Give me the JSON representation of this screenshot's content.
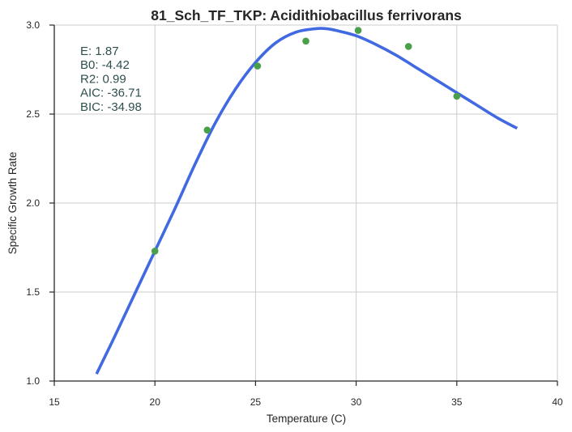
{
  "chart_data": {
    "type": "scatter",
    "title": "81_Sch_TF_TKP: Acidithiobacillus ferrivorans",
    "xlabel": "Temperature (C)",
    "ylabel": "Specific Growth Rate",
    "xlim": [
      15,
      40
    ],
    "ylim": [
      1.0,
      3.0
    ],
    "xticks": [
      "15",
      "20",
      "25",
      "30",
      "35",
      "40"
    ],
    "yticks": [
      "1.0",
      "1.5",
      "2.0",
      "2.5",
      "3.0"
    ],
    "grid": true,
    "colors": {
      "points": "#4aa04a",
      "fit": "#4169e1"
    },
    "points": {
      "x": [
        20.0,
        22.6,
        25.1,
        27.5,
        30.1,
        32.6,
        35.0
      ],
      "y": [
        1.73,
        2.41,
        2.77,
        2.91,
        2.97,
        2.88,
        2.6
      ]
    },
    "fit": {
      "x": [
        17.1,
        18.0,
        19.0,
        20.0,
        21.0,
        22.0,
        23.0,
        24.0,
        25.0,
        26.0,
        27.0,
        28.0,
        28.5,
        29.0,
        30.0,
        31.0,
        32.0,
        33.0,
        34.0,
        35.0,
        36.0,
        37.0,
        38.0
      ],
      "y": [
        1.04,
        1.25,
        1.49,
        1.73,
        1.97,
        2.22,
        2.45,
        2.64,
        2.79,
        2.9,
        2.96,
        2.98,
        2.98,
        2.97,
        2.94,
        2.89,
        2.83,
        2.76,
        2.69,
        2.62,
        2.55,
        2.48,
        2.42
      ]
    },
    "annotations": [
      "E:  1.87",
      "B0:  -4.42",
      "R2:  0.99",
      "AIC: -36.71",
      "BIC: -34.98"
    ]
  }
}
